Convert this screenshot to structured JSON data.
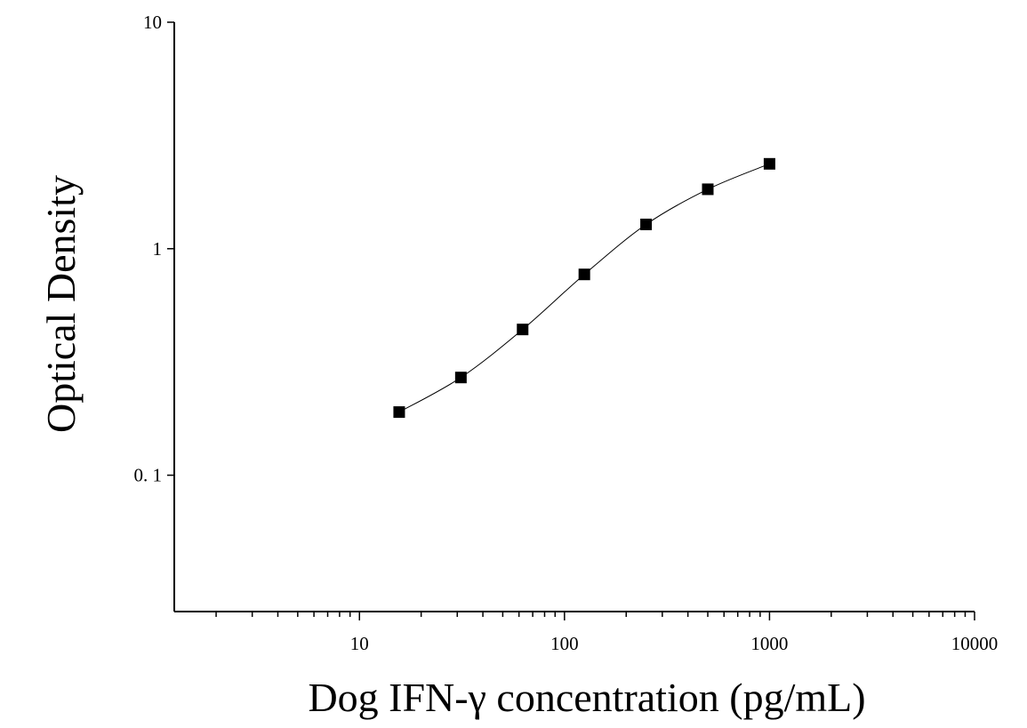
{
  "chart_data": {
    "type": "scatter",
    "title": "",
    "xlabel": "Dog IFN-γ concentration (pg/mL)",
    "ylabel": "Optical Density",
    "xscale": "log",
    "yscale": "log",
    "xlim": [
      1.25,
      10000
    ],
    "ylim": [
      0.025,
      10
    ],
    "x_tick_labels": [
      {
        "value": 10,
        "label": "10"
      },
      {
        "value": 100,
        "label": "100"
      },
      {
        "value": 1000,
        "label": "1000"
      },
      {
        "value": 10000,
        "label": "10000"
      }
    ],
    "y_tick_labels": [
      {
        "value": 0.1,
        "label": "0. 1"
      },
      {
        "value": 1,
        "label": "1"
      },
      {
        "value": 10,
        "label": "10"
      }
    ],
    "grid": false,
    "legend": "none",
    "series": [
      {
        "marker": "square",
        "fit_line": true,
        "x": [
          15.625,
          31.25,
          62.5,
          125,
          250,
          500,
          1000
        ],
        "y": [
          0.19,
          0.27,
          0.44,
          0.77,
          1.28,
          1.83,
          2.37
        ]
      }
    ]
  }
}
